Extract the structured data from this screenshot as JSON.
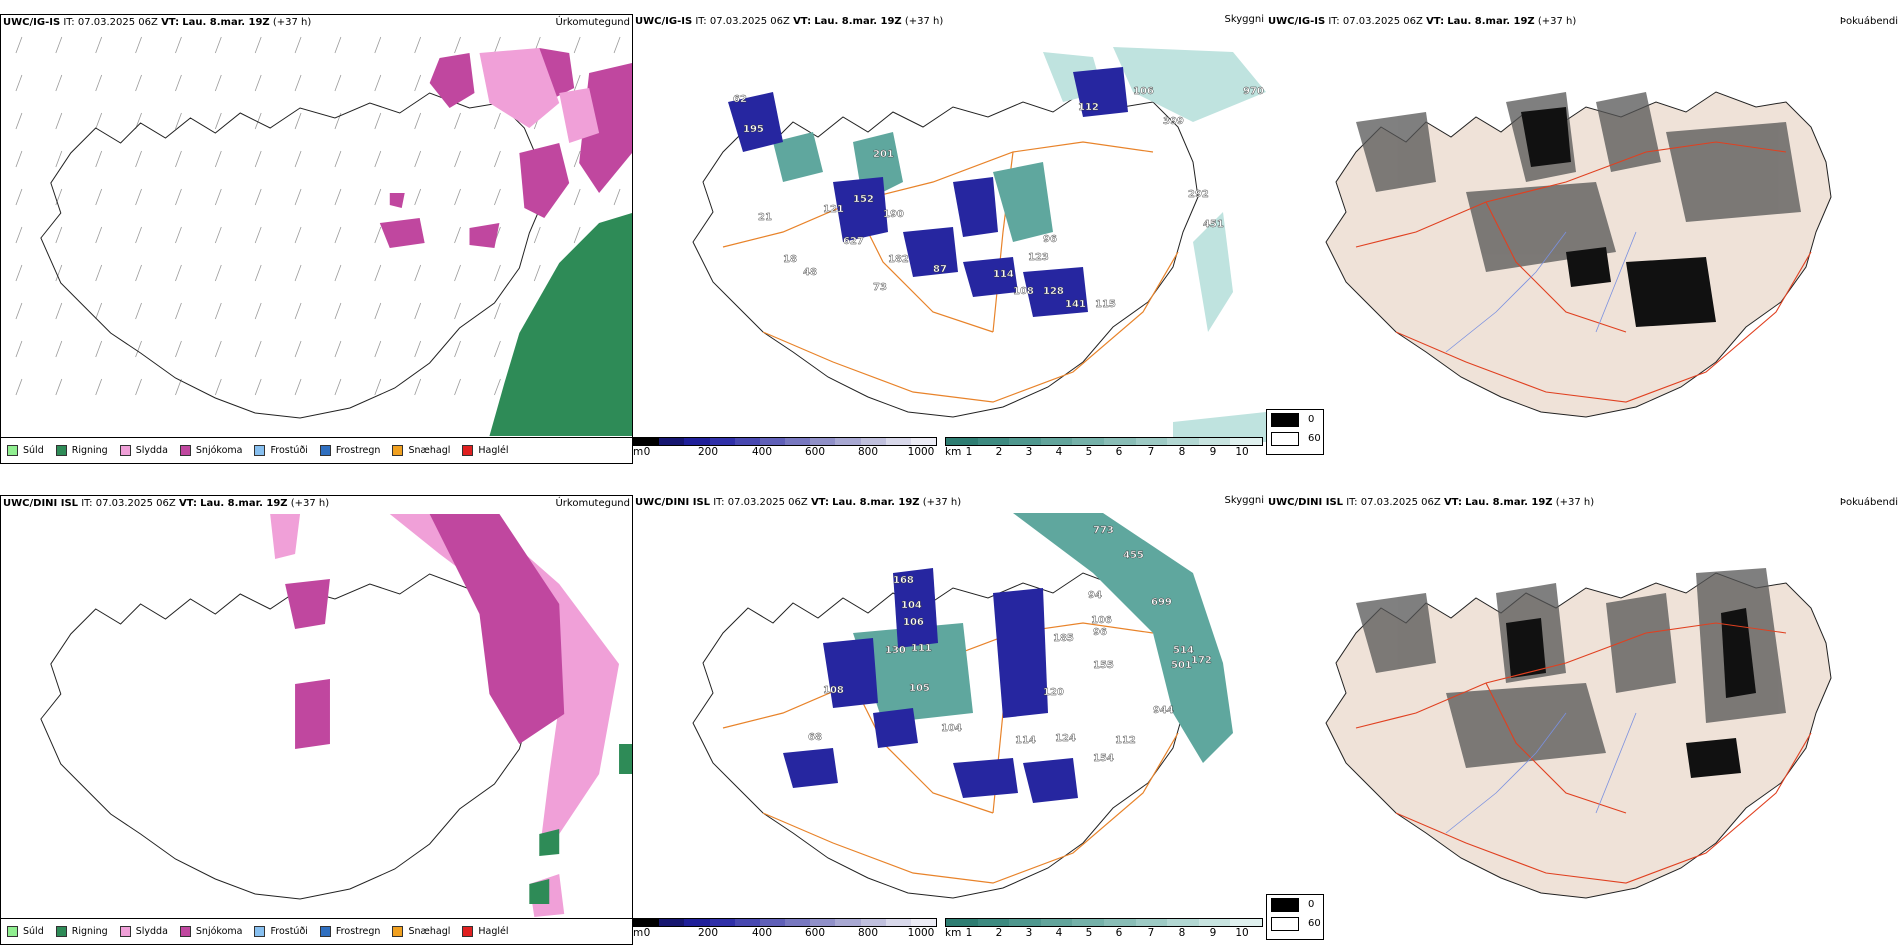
{
  "rows": [
    {
      "model": "UWC/IG-IS",
      "it_label": "IT:",
      "it_value": "07.03.2025 06Z",
      "vt_label": "VT:",
      "vt_value": "Lau. 8.mar. 19Z",
      "lead": "(+37 h)",
      "visibility_labels": [
        "112",
        "106",
        "970",
        "399",
        "62",
        "195",
        "201",
        "292",
        "121",
        "627",
        "152",
        "190",
        "182",
        "73",
        "87",
        "114",
        "108",
        "128",
        "141",
        "115",
        "96",
        "123",
        "451",
        "48",
        "18",
        "21"
      ]
    },
    {
      "model": "UWC/DINI ISL",
      "it_label": "IT:",
      "it_value": "07.03.2025 06Z",
      "vt_label": "VT:",
      "vt_value": "Lau. 8.mar. 19Z",
      "lead": "(+37 h)",
      "visibility_labels": [
        "773",
        "455",
        "699",
        "168",
        "104",
        "106",
        "94",
        "106",
        "96",
        "130",
        "111",
        "185",
        "155",
        "108",
        "105",
        "120",
        "514",
        "501",
        "172",
        "68",
        "104",
        "114",
        "124",
        "112",
        "154",
        "944"
      ]
    }
  ],
  "panel_titles": {
    "precip": "Úrkomutegund",
    "visibility": "Skyggni",
    "fog": "Þokuábendi"
  },
  "precip_legend": [
    {
      "label": "Súld",
      "color": "#90ee90"
    },
    {
      "label": "Rigning",
      "color": "#2e8b57"
    },
    {
      "label": "Slydda",
      "color": "#f0a0d8"
    },
    {
      "label": "Snjókoma",
      "color": "#c0479f"
    },
    {
      "label": "Frostúði",
      "color": "#87bfef"
    },
    {
      "label": "Frostregn",
      "color": "#2f6fc0"
    },
    {
      "label": "Snæhagl",
      "color": "#f0a020"
    },
    {
      "label": "Haglél",
      "color": "#e02020"
    }
  ],
  "ceiling_bar": {
    "unit": "m",
    "labels": [
      "0",
      "200",
      "400",
      "600",
      "800",
      "1000"
    ],
    "colors": [
      "#000000",
      "#161670",
      "#1f1f99",
      "#3030a8",
      "#4848b0",
      "#6060b8",
      "#7878c0",
      "#9090c8",
      "#a8a8d2",
      "#c0c0dd",
      "#d8d8ea",
      "#ececf5"
    ]
  },
  "vis_bar": {
    "unit": "km",
    "labels": [
      "1",
      "2",
      "3",
      "4",
      "5",
      "6",
      "7",
      "8",
      "9",
      "10"
    ],
    "colors": [
      "#2e7d72",
      "#3d8a80",
      "#4f978e",
      "#62a49b",
      "#75b1a9",
      "#89bdb6",
      "#9dcac4",
      "#b2d7d2",
      "#c8e4e0",
      "#e0f1ef"
    ]
  },
  "fog_legend": [
    {
      "label": "0",
      "color": "#000000"
    },
    {
      "label": "60",
      "color": "#ffffff"
    }
  ]
}
